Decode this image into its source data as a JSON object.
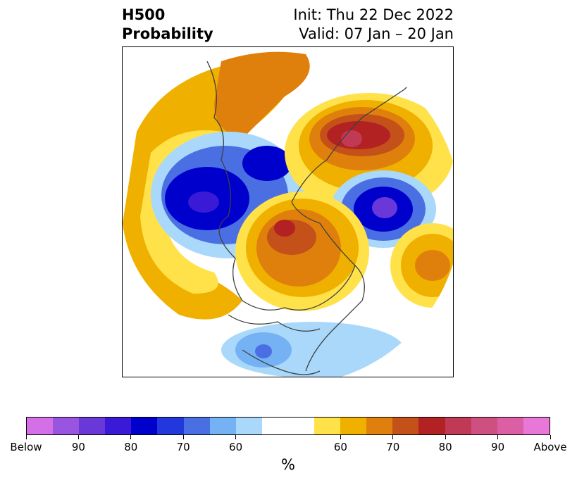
{
  "title": {
    "left_line1": "H500",
    "left_line2": "Probability",
    "right_line1": "Init: Thu 22 Dec 2022",
    "right_line2": "Valid: 07 Jan – 20 Jan"
  },
  "map": {
    "projection": "north-polar-stereographic",
    "colors": {
      "below_strong": "#0000cd",
      "below_mid": "#4a6fe3",
      "below_light": "#a9d8fb",
      "neutral": "#ffffff",
      "above_light": "#ffe24a",
      "above_mid": "#f0b000",
      "above_strong": "#e0800c",
      "above_stronger": "#c4501a",
      "above_peak": "#b22222",
      "coast": "#404040"
    }
  },
  "colorbar": {
    "colors": [
      "#d46fe8",
      "#9a55e0",
      "#6a38d8",
      "#3a1ad6",
      "#0000cd",
      "#2238dc",
      "#4a6fe3",
      "#75b2f3",
      "#a9d8fb",
      "#ffffff",
      "#ffffff",
      "#ffe24a",
      "#f0b000",
      "#e0800c",
      "#c4501a",
      "#b22222",
      "#c03a55",
      "#cd5080",
      "#dc5fa5",
      "#e878d8"
    ],
    "tick_labels": [
      "Below",
      "90",
      "80",
      "70",
      "60",
      "60",
      "70",
      "80",
      "90",
      "Above"
    ],
    "unit": "%"
  }
}
